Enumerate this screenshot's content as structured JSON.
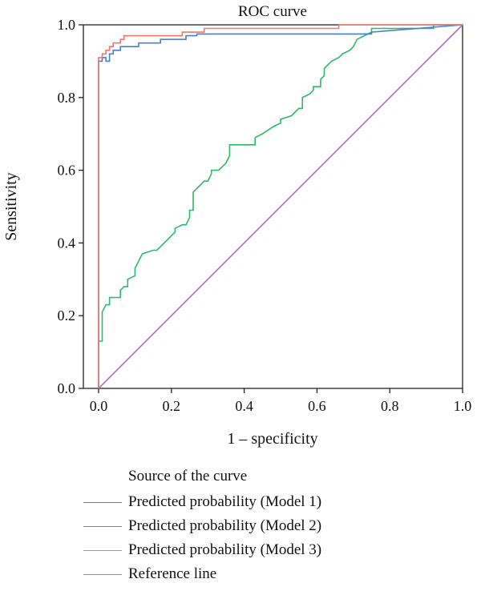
{
  "chart_data": {
    "type": "line",
    "title": "ROC curve",
    "xlabel": "1 – specificity",
    "ylabel": "Sensitivity",
    "xlim": [
      0.0,
      1.0
    ],
    "ylim": [
      0.0,
      1.0
    ],
    "xticks": [
      "0.0",
      "0.2",
      "0.4",
      "0.6",
      "0.8",
      "1.0"
    ],
    "yticks": [
      "0.0",
      "0.2",
      "0.4",
      "0.6",
      "0.8",
      "1.0"
    ],
    "grid": false,
    "legend_title": "Source of the curve",
    "legend_position": "bottom",
    "series": [
      {
        "name": "Predicted probability (Model 1)",
        "color": "#4a7fd0",
        "x": [
          0.0,
          0.0,
          0.0,
          0.01,
          0.01,
          0.02,
          0.02,
          0.03,
          0.03,
          0.04,
          0.04,
          0.06,
          0.06,
          0.11,
          0.11,
          0.17,
          0.17,
          0.24,
          0.24,
          0.27,
          0.27,
          0.75,
          0.75,
          1.0
        ],
        "y": [
          0.0,
          0.87,
          0.9,
          0.9,
          0.91,
          0.91,
          0.9,
          0.9,
          0.92,
          0.92,
          0.93,
          0.93,
          0.94,
          0.94,
          0.95,
          0.95,
          0.96,
          0.96,
          0.97,
          0.97,
          0.975,
          0.975,
          0.98,
          1.0
        ]
      },
      {
        "name": "Predicted probability (Model 2)",
        "color": "#2eb86a",
        "x": [
          0.0,
          0.0,
          0.01,
          0.01,
          0.02,
          0.03,
          0.03,
          0.06,
          0.06,
          0.07,
          0.08,
          0.08,
          0.1,
          0.1,
          0.11,
          0.12,
          0.15,
          0.16,
          0.17,
          0.19,
          0.2,
          0.21,
          0.21,
          0.23,
          0.24,
          0.25,
          0.25,
          0.26,
          0.26,
          0.28,
          0.29,
          0.3,
          0.31,
          0.31,
          0.33,
          0.34,
          0.35,
          0.36,
          0.36,
          0.43,
          0.43,
          0.45,
          0.48,
          0.5,
          0.5,
          0.53,
          0.55,
          0.56,
          0.56,
          0.58,
          0.59,
          0.59,
          0.61,
          0.61,
          0.62,
          0.62,
          0.64,
          0.66,
          0.67,
          0.69,
          0.7,
          0.71,
          0.73,
          0.75,
          0.75,
          0.92,
          0.92,
          1.0
        ],
        "y": [
          0.12,
          0.13,
          0.13,
          0.21,
          0.23,
          0.23,
          0.25,
          0.25,
          0.27,
          0.28,
          0.28,
          0.3,
          0.31,
          0.33,
          0.35,
          0.37,
          0.38,
          0.38,
          0.39,
          0.41,
          0.42,
          0.43,
          0.44,
          0.45,
          0.45,
          0.47,
          0.49,
          0.49,
          0.54,
          0.56,
          0.57,
          0.57,
          0.59,
          0.6,
          0.6,
          0.61,
          0.62,
          0.64,
          0.67,
          0.67,
          0.69,
          0.7,
          0.72,
          0.73,
          0.74,
          0.75,
          0.77,
          0.77,
          0.8,
          0.81,
          0.82,
          0.83,
          0.83,
          0.85,
          0.86,
          0.88,
          0.9,
          0.91,
          0.92,
          0.93,
          0.94,
          0.96,
          0.97,
          0.98,
          0.99,
          0.99,
          1.0,
          1.0
        ]
      },
      {
        "name": "Predicted probability (Model 3)",
        "color": "#f0786a",
        "x": [
          0.0,
          0.0,
          0.0,
          0.01,
          0.01,
          0.02,
          0.02,
          0.03,
          0.03,
          0.04,
          0.04,
          0.06,
          0.06,
          0.07,
          0.07,
          0.23,
          0.23,
          0.29,
          0.29,
          0.66,
          0.66,
          1.0
        ],
        "y": [
          0.0,
          0.9,
          0.91,
          0.91,
          0.92,
          0.92,
          0.93,
          0.93,
          0.94,
          0.94,
          0.95,
          0.95,
          0.96,
          0.96,
          0.97,
          0.97,
          0.98,
          0.98,
          0.99,
          0.99,
          1.0,
          1.0
        ]
      },
      {
        "name": "Reference line",
        "color": "#b36ad0",
        "x": [
          0.0,
          1.0
        ],
        "y": [
          0.0,
          1.0
        ]
      }
    ]
  }
}
